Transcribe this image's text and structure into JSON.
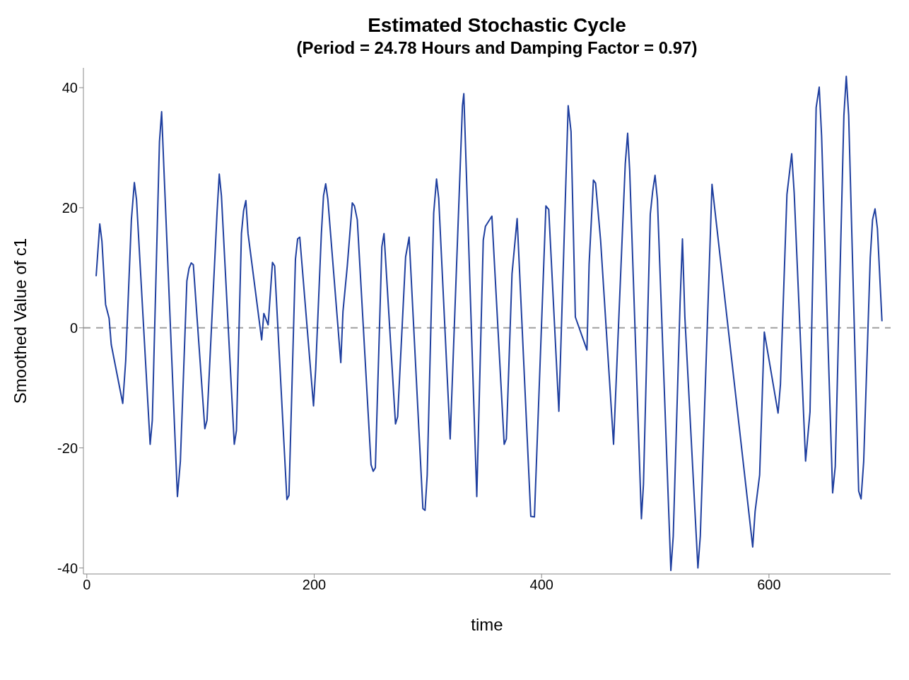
{
  "chart_data": {
    "type": "line",
    "title": "Estimated Stochastic Cycle",
    "subtitle": "(Period = 24.78 Hours and Damping Factor = 0.97)",
    "xlabel": "time",
    "ylabel": "Smoothed Value of c1",
    "x": [
      8.2,
      11.4,
      13.3,
      16.5,
      19.6,
      21.5,
      31.6,
      34.2,
      39.2,
      41.8,
      43.7,
      55.7,
      57.6,
      63.9,
      65.8,
      67.7,
      79.7,
      82.3,
      88,
      89.9,
      91.8,
      93.7,
      103.8,
      105.7,
      114.6,
      116.5,
      118.4,
      129.7,
      131.6,
      136,
      137.9,
      139.9,
      141.8,
      153.8,
      155.7,
      159.5,
      163.3,
      165.2,
      176,
      177.8,
      183.5,
      185.4,
      187.3,
      199.4,
      201.3,
      206.3,
      208.2,
      210.1,
      212,
      223.4,
      225.3,
      229.1,
      233.5,
      235.4,
      237.9,
      250,
      251.9,
      253.8,
      259.5,
      261.4,
      271.5,
      273.4,
      280.4,
      283.5,
      295.6,
      297.5,
      299.4,
      305.1,
      307.6,
      309.5,
      319.6,
      330.4,
      331.6,
      343,
      348.7,
      350.6,
      356.3,
      367.1,
      369,
      374,
      378.5,
      390.5,
      393.7,
      403.8,
      406.3,
      415.2,
      423.4,
      425.9,
      429.7,
      439.9,
      441.8,
      445.6,
      447.5,
      451.9,
      463.3,
      473.6,
      475.7,
      477.5,
      487.8,
      489.6,
      495.6,
      497.7,
      499.8,
      501.9,
      513.7,
      515.8,
      521.8,
      523.9,
      526,
      537.5,
      539.6,
      549.9,
      585.7,
      587.8,
      591.8,
      595.9,
      608,
      610.1,
      615.8,
      620,
      622.2,
      632.2,
      636.1,
      641.5,
      644.2,
      646.3,
      656,
      658.3,
      665.9,
      668,
      670.1,
      678.9,
      681,
      683.3,
      689.1,
      691.1,
      693.3,
      695.4,
      699.4
    ],
    "series": [
      {
        "color": "#1f3f9f",
        "values": [
          8.6,
          17.3,
          14.4,
          3.9,
          1.6,
          -2.8,
          -12.6,
          -5.5,
          18,
          24.2,
          21.4,
          -19.4,
          -15.4,
          31,
          36,
          27,
          -28.1,
          -22.2,
          7.8,
          9.9,
          10.8,
          10.5,
          -16.8,
          -15.4,
          19.4,
          25.6,
          22,
          -19.4,
          -17.1,
          15.7,
          19.5,
          21.2,
          15.7,
          -2,
          2.4,
          0.5,
          10.9,
          10.3,
          -28.6,
          -27.9,
          11.4,
          14.8,
          15.1,
          -13,
          -6.9,
          15.7,
          22,
          24,
          21.4,
          -5.8,
          2.7,
          10.3,
          20.8,
          20.3,
          18,
          -22.8,
          -23.9,
          -23.3,
          13.5,
          15.7,
          -16,
          -14.8,
          11.8,
          15.1,
          -30.1,
          -30.4,
          -24.5,
          19.1,
          24.8,
          21.6,
          -18.5,
          37,
          39,
          -28.1,
          14.6,
          16.9,
          18.6,
          -19.4,
          -18.5,
          9,
          18.2,
          -31.4,
          -31.5,
          20.3,
          19.7,
          -13.9,
          37,
          32.7,
          1.8,
          -3.7,
          10.6,
          24.6,
          24.1,
          14.6,
          -19.4,
          27.3,
          32.4,
          26.2,
          -31.8,
          -26.1,
          18.9,
          22.7,
          25.4,
          21.3,
          -40.4,
          -34.7,
          4.1,
          14.8,
          1.9,
          -40,
          -34.7,
          23.9,
          -36.5,
          -30.6,
          -24.5,
          -0.7,
          -14.2,
          -9.4,
          22.2,
          29,
          22.4,
          -22.2,
          -14,
          36.7,
          40.1,
          31.9,
          -27.5,
          -23.1,
          35.4,
          41.9,
          35.4,
          -27.2,
          -28.5,
          -22.3,
          11.7,
          18,
          19.8,
          16.5,
          1.1
        ]
      }
    ],
    "xlim": [
      -3,
      707
    ],
    "xticks": [
      0,
      200,
      400,
      600
    ],
    "ylim": [
      -41,
      43.3
    ],
    "yticks": [
      -40,
      -20,
      0,
      20,
      40
    ],
    "ref_lines": [
      {
        "axis": "y",
        "value": 0,
        "color": "#a0a0a0",
        "line_style": "dashed"
      }
    ],
    "marker": "none",
    "line_style": "solid",
    "grid": false,
    "legend": false
  }
}
